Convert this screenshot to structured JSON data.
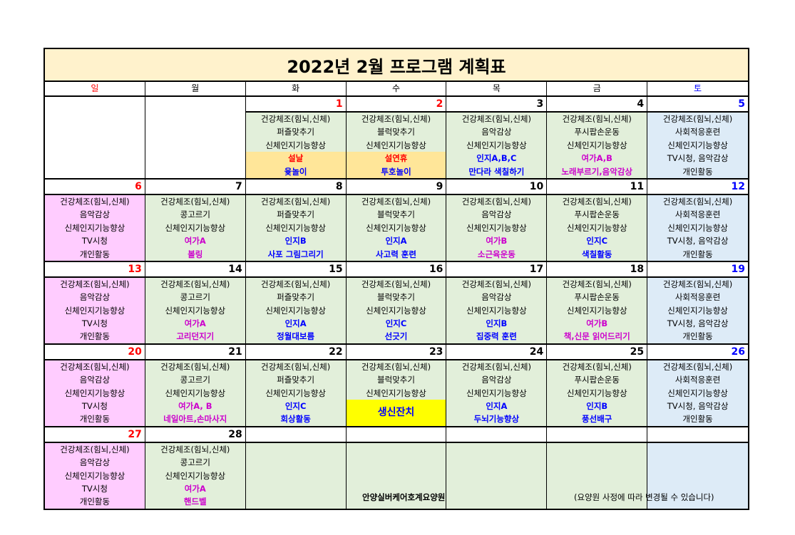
{
  "title": "2022년 2월 프로그램 계획표",
  "colors": {
    "sun": "#ffccff",
    "wk": "#e2efda",
    "sat": "#ddebf7",
    "none": "#ffffff",
    "holiday": "#ffe699",
    "party": "#ffff00",
    "red": "#ff0000",
    "blue": "#0000ff",
    "magenta": "#cc00cc",
    "black": "#000000"
  },
  "weekdays": [
    {
      "label": "일",
      "color": "red"
    },
    {
      "label": "월",
      "color": "black"
    },
    {
      "label": "화",
      "color": "black"
    },
    {
      "label": "수",
      "color": "black"
    },
    {
      "label": "목",
      "color": "black"
    },
    {
      "label": "금",
      "color": "black"
    },
    {
      "label": "토",
      "color": "blue"
    }
  ],
  "weeks": [
    [
      {
        "date": "",
        "type": "none",
        "lines": []
      },
      {
        "date": "",
        "type": "none",
        "lines": []
      },
      {
        "date": "1",
        "dcolor": "red",
        "type": "wk",
        "lines": [
          {
            "t": "건강체조(힘뇌,신체)"
          },
          {
            "t": "퍼즐맞추기"
          },
          {
            "t": "신체인지기능향상"
          },
          {
            "t": "설날",
            "c": "red",
            "bg": "holiday"
          },
          {
            "t": "윷놀이",
            "c": "blue",
            "bg": "holiday"
          }
        ]
      },
      {
        "date": "2",
        "dcolor": "red",
        "type": "wk",
        "lines": [
          {
            "t": "건강체조(힘뇌,신체)"
          },
          {
            "t": "블럭맞추기"
          },
          {
            "t": "신체인지기능향상"
          },
          {
            "t": "설연휴",
            "c": "red",
            "bg": "holiday"
          },
          {
            "t": "투호놀이",
            "c": "blue",
            "bg": "holiday"
          }
        ]
      },
      {
        "date": "3",
        "type": "wk",
        "lines": [
          {
            "t": "건강체조(힘뇌,신체)"
          },
          {
            "t": "음악감상"
          },
          {
            "t": "신체인지기능향상"
          },
          {
            "t": "인지A,B,C",
            "c": "blue"
          },
          {
            "t": "만다라 색칠하기",
            "c": "blue"
          }
        ]
      },
      {
        "date": "4",
        "type": "wk",
        "lines": [
          {
            "t": "건강체조(힘뇌,신체)"
          },
          {
            "t": "푸시팝손운동"
          },
          {
            "t": "신체인지기능향상"
          },
          {
            "t": "여가A,B",
            "c": "magenta"
          },
          {
            "t": "노래부르기,음악감상",
            "c": "magenta"
          }
        ]
      },
      {
        "date": "5",
        "dcolor": "blue",
        "type": "sat",
        "lines": [
          {
            "t": "건강체조(힘뇌,신체)"
          },
          {
            "t": "사회적응훈련"
          },
          {
            "t": "신체인지기능향상"
          },
          {
            "t": "TV시청, 음악감상"
          },
          {
            "t": "개인활동"
          }
        ]
      }
    ],
    [
      {
        "date": "6",
        "dcolor": "red",
        "type": "sun",
        "lines": [
          {
            "t": "건강체조(힘뇌,신체)"
          },
          {
            "t": "음악감상"
          },
          {
            "t": "신체인지기능향상"
          },
          {
            "t": "TV시청"
          },
          {
            "t": "개인활동"
          }
        ]
      },
      {
        "date": "7",
        "type": "wk",
        "lines": [
          {
            "t": "건강체조(힘뇌,신체)"
          },
          {
            "t": "콩고르기"
          },
          {
            "t": "신체인지기능향상"
          },
          {
            "t": "여가A",
            "c": "magenta"
          },
          {
            "t": "볼링",
            "c": "magenta"
          }
        ]
      },
      {
        "date": "8",
        "type": "wk",
        "lines": [
          {
            "t": "건강체조(힘뇌,신체)"
          },
          {
            "t": "퍼즐맞추기"
          },
          {
            "t": "신체인지기능향상"
          },
          {
            "t": "인지B",
            "c": "blue"
          },
          {
            "t": "사포 그림그리기",
            "c": "blue"
          }
        ]
      },
      {
        "date": "9",
        "type": "wk",
        "lines": [
          {
            "t": "건강체조(힘뇌,신체)"
          },
          {
            "t": "블럭맞추기"
          },
          {
            "t": "신체인지기능향상"
          },
          {
            "t": "인지A",
            "c": "blue"
          },
          {
            "t": "사고력 훈련",
            "c": "blue"
          }
        ]
      },
      {
        "date": "10",
        "type": "wk",
        "lines": [
          {
            "t": "건강체조(힘뇌,신체)"
          },
          {
            "t": "음악감상"
          },
          {
            "t": "신체인지기능향상"
          },
          {
            "t": "여가B",
            "c": "magenta"
          },
          {
            "t": "소근육운동",
            "c": "magenta"
          }
        ]
      },
      {
        "date": "11",
        "type": "wk",
        "lines": [
          {
            "t": "건강체조(힘뇌,신체)"
          },
          {
            "t": "푸시팝손운동"
          },
          {
            "t": "신체인지기능향상"
          },
          {
            "t": "인지C",
            "c": "blue"
          },
          {
            "t": "색칠활동",
            "c": "blue"
          }
        ]
      },
      {
        "date": "12",
        "dcolor": "blue",
        "type": "sat",
        "lines": [
          {
            "t": "건강체조(힘뇌,신체)"
          },
          {
            "t": "사회적응훈련"
          },
          {
            "t": "신체인지기능향상"
          },
          {
            "t": "TV시청, 음악감상"
          },
          {
            "t": "개인활동"
          }
        ]
      }
    ],
    [
      {
        "date": "13",
        "dcolor": "red",
        "type": "sun",
        "lines": [
          {
            "t": "건강체조(힘뇌,신체)"
          },
          {
            "t": "음악감상"
          },
          {
            "t": "신체인지기능향상"
          },
          {
            "t": "TV시청"
          },
          {
            "t": "개인활동"
          }
        ]
      },
      {
        "date": "14",
        "type": "wk",
        "lines": [
          {
            "t": "건강체조(힘뇌,신체)"
          },
          {
            "t": "콩고르기"
          },
          {
            "t": "신체인지기능향상"
          },
          {
            "t": "여가A",
            "c": "magenta"
          },
          {
            "t": "고리던지기",
            "c": "magenta"
          }
        ]
      },
      {
        "date": "15",
        "type": "wk",
        "lines": [
          {
            "t": "건강체조(힘뇌,신체)"
          },
          {
            "t": "퍼즐맞추기"
          },
          {
            "t": "신체인지기능향상"
          },
          {
            "t": "인지A",
            "c": "blue"
          },
          {
            "t": "정월대보름",
            "c": "blue"
          }
        ]
      },
      {
        "date": "16",
        "type": "wk",
        "lines": [
          {
            "t": "건강체조(힘뇌,신체)"
          },
          {
            "t": "블럭맞추기"
          },
          {
            "t": "신체인지기능향상"
          },
          {
            "t": "인지C",
            "c": "blue"
          },
          {
            "t": "선긋기",
            "c": "blue"
          }
        ]
      },
      {
        "date": "17",
        "type": "wk",
        "lines": [
          {
            "t": "건강체조(힘뇌,신체)"
          },
          {
            "t": "음악감상"
          },
          {
            "t": "신체인지기능향상"
          },
          {
            "t": "인지B",
            "c": "blue"
          },
          {
            "t": "집중력 훈련",
            "c": "blue"
          }
        ]
      },
      {
        "date": "18",
        "type": "wk",
        "lines": [
          {
            "t": "건강체조(힘뇌,신체)"
          },
          {
            "t": "푸시팝손운동"
          },
          {
            "t": "신체인지기능향상"
          },
          {
            "t": "여가B",
            "c": "magenta"
          },
          {
            "t": "책,신문 읽어드리기",
            "c": "magenta"
          }
        ]
      },
      {
        "date": "19",
        "dcolor": "blue",
        "type": "sat",
        "lines": [
          {
            "t": "건강체조(힘뇌,신체)"
          },
          {
            "t": "사회적응훈련"
          },
          {
            "t": "신체인지기능향상"
          },
          {
            "t": "TV시청, 음악감상"
          },
          {
            "t": "개인활동"
          }
        ]
      }
    ],
    [
      {
        "date": "20",
        "dcolor": "red",
        "type": "sun",
        "lines": [
          {
            "t": "건강체조(힘뇌,신체)"
          },
          {
            "t": "음악감상"
          },
          {
            "t": "신체인지기능향상"
          },
          {
            "t": "TV시청"
          },
          {
            "t": "개인활동"
          }
        ]
      },
      {
        "date": "21",
        "type": "wk",
        "lines": [
          {
            "t": "건강체조(힘뇌,신체)"
          },
          {
            "t": "콩고르기"
          },
          {
            "t": "신체인지기능향상"
          },
          {
            "t": "여가A, B",
            "c": "magenta"
          },
          {
            "t": "네일아트,손마사지",
            "c": "magenta"
          }
        ]
      },
      {
        "date": "22",
        "type": "wk",
        "lines": [
          {
            "t": "건강체조(힘뇌,신체)"
          },
          {
            "t": "퍼즐맞추기"
          },
          {
            "t": "신체인지기능향상"
          },
          {
            "t": "인지C",
            "c": "blue"
          },
          {
            "t": "회상활동",
            "c": "blue"
          }
        ]
      },
      {
        "date": "23",
        "type": "wk",
        "lines": [
          {
            "t": "건강체조(힘뇌,신체)"
          },
          {
            "t": "블럭맞추기"
          },
          {
            "t": "신체인지기능향상"
          },
          {
            "t": "생신잔치",
            "c": "blue",
            "bg": "party",
            "merged": true
          }
        ]
      },
      {
        "date": "24",
        "type": "wk",
        "lines": [
          {
            "t": "건강체조(힘뇌,신체)"
          },
          {
            "t": "음악감상"
          },
          {
            "t": "신체인지기능향상"
          },
          {
            "t": "인지A",
            "c": "blue"
          },
          {
            "t": "두뇌기능향상",
            "c": "blue"
          }
        ]
      },
      {
        "date": "25",
        "type": "wk",
        "lines": [
          {
            "t": "건강체조(힘뇌,신체)"
          },
          {
            "t": "푸시팝손운동"
          },
          {
            "t": "신체인지기능향상"
          },
          {
            "t": "인지B",
            "c": "blue"
          },
          {
            "t": "풍선배구",
            "c": "blue"
          }
        ]
      },
      {
        "date": "26",
        "dcolor": "blue",
        "type": "sat",
        "lines": [
          {
            "t": "건강체조(힘뇌,신체)"
          },
          {
            "t": "사회적응훈련"
          },
          {
            "t": "신체인지기능향상"
          },
          {
            "t": "TV시청, 음악감상"
          },
          {
            "t": "개인활동"
          }
        ]
      }
    ],
    [
      {
        "date": "27",
        "dcolor": "red",
        "type": "sun",
        "lines": [
          {
            "t": "건강체조(힘뇌,신체)"
          },
          {
            "t": "음악감상"
          },
          {
            "t": "신체인지기능향상"
          },
          {
            "t": "TV시청"
          },
          {
            "t": "개인활동"
          }
        ]
      },
      {
        "date": "28",
        "type": "wk",
        "lines": [
          {
            "t": "건강체조(힘뇌,신체)"
          },
          {
            "t": "콩고르기"
          },
          {
            "t": "신체인지기능향상"
          },
          {
            "t": "여가A",
            "c": "magenta"
          },
          {
            "t": "핸드벨",
            "c": "magenta"
          }
        ]
      },
      {
        "date": "",
        "type": "wk",
        "lines": []
      },
      {
        "date": "",
        "type": "wk",
        "lines": []
      },
      {
        "date": "",
        "type": "wk",
        "lines": []
      },
      {
        "date": "",
        "type": "wk",
        "lines": []
      },
      {
        "date": "",
        "type": "sat",
        "lines": []
      }
    ]
  ],
  "footer": {
    "organization": "안양실버케어호계요양원",
    "note": "(요양원 사정에 따라 변경될 수 있습니다)"
  }
}
